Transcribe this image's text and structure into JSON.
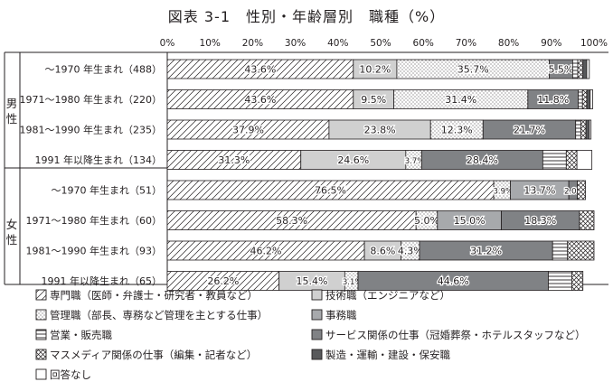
{
  "title": "図表 3-1　性別・年齢層別　職種（%）",
  "chart_data": {
    "type": "bar",
    "orientation": "horizontal",
    "stacked": true,
    "percent": true,
    "xlim": [
      0,
      100
    ],
    "x_ticks": [
      "0%",
      "10%",
      "20%",
      "30%",
      "40%",
      "50%",
      "60%",
      "70%",
      "80%",
      "90%",
      "100%"
    ],
    "groups": [
      {
        "label": "男性",
        "rows": [
          "～1970 年生まれ（488）",
          "1971～1980 年生まれ（220）",
          "1981～1990 年生まれ（235）",
          "1991 年以降生まれ（134）"
        ]
      },
      {
        "label": "女性",
        "rows": [
          "～1970 年生まれ（51）",
          "1971～1980 年生まれ（60）",
          "1981～1990 年生まれ（93）",
          "1991 年以降生まれ（65）"
        ]
      }
    ],
    "categories": [
      "～1970 年生まれ（488）",
      "1971～1980 年生まれ（220）",
      "1981～1990 年生まれ（235）",
      "1991 年以降生まれ（134）",
      "～1970 年生まれ（51）",
      "1971～1980 年生まれ（60）",
      "1981～1990 年生まれ（93）",
      "1991 年以降生まれ（65）"
    ],
    "series": [
      {
        "name": "専門職（医師・弁護士・研究者・教員など）",
        "pattern": "diagonal",
        "color": "#ffffff",
        "values": [
          43.6,
          43.6,
          37.9,
          31.3,
          76.5,
          58.3,
          46.2,
          26.2
        ],
        "labels": [
          "43.6%",
          "43.6%",
          "37.9%",
          "31.3%",
          "76.5%",
          "58.3%",
          "46.2%",
          "26.2%"
        ]
      },
      {
        "name": "技術職（エンジニアなど）",
        "pattern": "solid",
        "color": "#d0d0d0",
        "values": [
          10.2,
          9.5,
          23.8,
          24.6,
          0,
          0,
          8.6,
          15.4
        ],
        "labels": [
          "10.2%",
          "9.5%",
          "23.8%",
          "24.6%",
          "",
          "",
          "8.6%",
          "15.4%"
        ]
      },
      {
        "name": "管理職（部長、専務など管理を主とする仕事）",
        "pattern": "dots",
        "color": "#ffffff",
        "values": [
          35.7,
          31.4,
          12.3,
          3.7,
          3.9,
          5.0,
          4.3,
          3.1
        ],
        "labels": [
          "35.7%",
          "31.4%",
          "12.3%",
          "3.7%",
          "3.9%",
          "5.0%",
          "4.3%",
          "3.1%"
        ]
      },
      {
        "name": "事務職",
        "pattern": "solid",
        "color": "#a7a9ac",
        "values": [
          0,
          0,
          0,
          0,
          13.7,
          15.0,
          0,
          0
        ],
        "labels": [
          "",
          "",
          "",
          "",
          "13.7%",
          "15.0%",
          "",
          ""
        ]
      },
      {
        "name": "営業・販売職",
        "pattern": "hlines",
        "color": "#ffffff",
        "values": [
          0,
          0,
          0,
          0,
          0,
          0,
          0,
          0
        ],
        "labels": [
          "",
          "",
          "",
          "",
          "",
          "",
          "",
          ""
        ]
      },
      {
        "name": "サービス関係の仕事（冠婚葬祭・ホテルスタッフなど）",
        "pattern": "solid",
        "color": "#808285",
        "values": [
          5.5,
          11.8,
          21.7,
          28.4,
          2.0,
          18.3,
          31.2,
          44.6
        ],
        "labels": [
          "5.5%",
          "11.8%",
          "21.7%",
          "28.4%",
          "2.0%",
          "18.3%",
          "31.2%",
          "44.6%"
        ]
      },
      {
        "name": "マスメディア関係の仕事（編集・記者など）",
        "pattern": "crosshatch",
        "color": "#ffffff",
        "values": [
          0,
          0,
          0,
          0,
          0,
          0,
          0,
          0
        ],
        "labels": [
          "",
          "",
          "",
          "",
          "",
          "",
          "",
          ""
        ]
      },
      {
        "name": "製造・運輸・建設・保安職",
        "pattern": "solid",
        "color": "#58595b",
        "values": [
          0,
          0,
          0,
          0,
          0,
          0,
          0,
          0
        ],
        "labels": [
          "",
          "",
          "",
          "",
          "",
          "",
          "",
          ""
        ]
      },
      {
        "name": "回答なし",
        "pattern": "solid",
        "color": "#ffffff",
        "values": [
          0,
          0,
          0,
          0,
          0,
          0,
          0,
          0
        ],
        "labels": [
          "",
          "",
          "",
          "",
          "",
          "",
          "",
          ""
        ]
      }
    ],
    "tail_segments": [
      [
        [
          "hlines",
          1.2
        ],
        [
          "crosshatch",
          1.2
        ],
        [
          "solid_dark",
          0.9
        ],
        [
          "empty",
          0.6
        ]
      ],
      [
        [
          "hlines",
          1.0
        ],
        [
          "crosshatch",
          1.0
        ],
        [
          "solid_dark",
          0.8
        ],
        [
          "empty",
          0.6
        ]
      ],
      [
        [
          "hlines",
          1.2
        ],
        [
          "crosshatch",
          1.2
        ],
        [
          "solid_dark",
          0.8
        ],
        [
          "empty",
          0.4
        ]
      ],
      [
        [
          "hlines",
          5.5
        ],
        [
          "crosshatch",
          2.5
        ],
        [
          "empty",
          3.5
        ]
      ],
      [
        [
          "crosshatch",
          1.9
        ]
      ],
      [
        [
          "crosshatch",
          3.4
        ]
      ],
      [
        [
          "hlines",
          3.5
        ],
        [
          "crosshatch",
          6.2
        ]
      ],
      [
        [
          "hlines",
          5.5
        ],
        [
          "crosshatch",
          2.6
        ]
      ]
    ],
    "legend_placement": "bottom",
    "grid": false
  }
}
